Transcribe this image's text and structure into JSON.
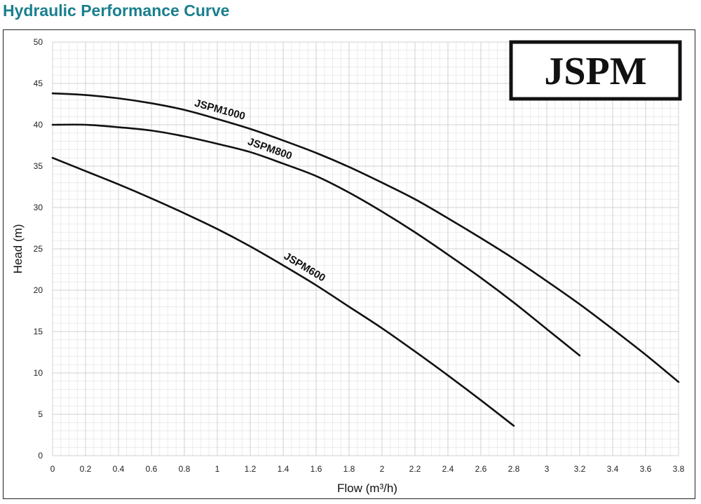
{
  "header": {
    "title": "Hydraulic Performance Curve"
  },
  "logo": {
    "text": "JSPM"
  },
  "colors": {
    "title": "#1a7f8e",
    "curve": "#111111",
    "grid_major": "#d0d0d0",
    "grid_minor": "#ececec"
  },
  "chart_data": {
    "type": "line",
    "title": "",
    "xlabel": "Flow (m³/h)",
    "ylabel": "Head (m)",
    "xlim": [
      0,
      3.8
    ],
    "ylim": [
      0,
      50
    ],
    "x_ticks": [
      "0",
      "0.2",
      "0.4",
      "0.6",
      "0.8",
      "1",
      "1.2",
      "1.4",
      "1.6",
      "1.8",
      "2",
      "2.2",
      "2.4",
      "2.6",
      "2.8",
      "3",
      "3.2",
      "3.4",
      "3.6",
      "3.8"
    ],
    "y_ticks": [
      "0",
      "5",
      "10",
      "15",
      "20",
      "25",
      "30",
      "35",
      "40",
      "45",
      "50"
    ],
    "grid": true,
    "legend": "none",
    "series": [
      {
        "name": "JSPM1000",
        "x": [
          0,
          0.2,
          0.4,
          0.6,
          0.8,
          1.0,
          1.2,
          1.4,
          1.6,
          1.8,
          2.0,
          2.2,
          2.4,
          2.6,
          2.8,
          3.0,
          3.2,
          3.4,
          3.6,
          3.8
        ],
        "y": [
          43.8,
          43.6,
          43.2,
          42.6,
          41.8,
          40.7,
          39.5,
          38.1,
          36.6,
          34.9,
          33.0,
          31.0,
          28.7,
          26.3,
          23.8,
          21.1,
          18.3,
          15.3,
          12.2,
          8.9
        ]
      },
      {
        "name": "JSPM800",
        "x": [
          0,
          0.2,
          0.4,
          0.6,
          0.8,
          1.0,
          1.2,
          1.4,
          1.6,
          1.8,
          2.0,
          2.2,
          2.4,
          2.6,
          2.8,
          3.0,
          3.2
        ],
        "y": [
          40.0,
          40.0,
          39.7,
          39.3,
          38.6,
          37.7,
          36.7,
          35.3,
          33.8,
          31.8,
          29.5,
          27.0,
          24.3,
          21.5,
          18.5,
          15.3,
          12.1
        ]
      },
      {
        "name": "JSPM600",
        "x": [
          0,
          0.2,
          0.4,
          0.6,
          0.8,
          1.0,
          1.2,
          1.4,
          1.6,
          1.8,
          2.0,
          2.2,
          2.4,
          2.6,
          2.8
        ],
        "y": [
          36.0,
          34.4,
          32.8,
          31.1,
          29.3,
          27.4,
          25.3,
          23.0,
          20.6,
          18.0,
          15.4,
          12.6,
          9.7,
          6.7,
          3.6
        ]
      }
    ]
  }
}
